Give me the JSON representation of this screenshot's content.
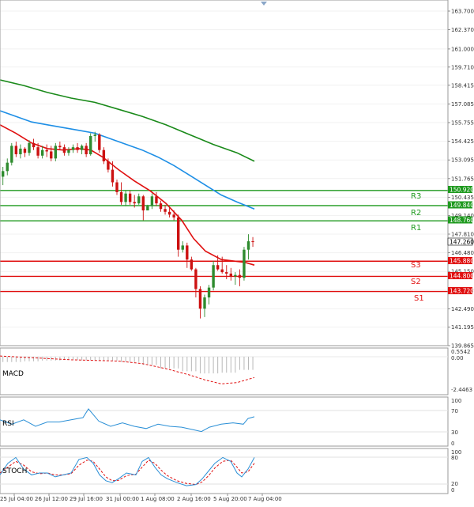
{
  "price_axis": {
    "ticks": [
      "163.700",
      "162.370",
      "161.000",
      "159.710",
      "158.415",
      "157.085",
      "155.755",
      "154.425",
      "153.095",
      "151.765",
      "150.435",
      "149.140",
      "147.810",
      "146.480",
      "145.150",
      "143.820",
      "142.490",
      "141.195",
      "139.865"
    ]
  },
  "price_tags": {
    "r3": "150.920",
    "r2": "149.840",
    "r1": "148.760",
    "current": "147.260",
    "s1": "145.880",
    "s2": "144.800",
    "s3": "143.720"
  },
  "level_labels": {
    "r3": "R3",
    "r2": "R2",
    "r1": "R1",
    "s3": "S3",
    "s2": "S2",
    "s1": "S1"
  },
  "macd": {
    "label": "MACD",
    "ticks": [
      "0.5542",
      "0.00",
      "-2.4463"
    ]
  },
  "rsi": {
    "label": "RSI",
    "ticks": [
      "100",
      "70",
      "30",
      "0"
    ]
  },
  "stoch": {
    "label": "STOCH",
    "ticks": [
      "100",
      "80",
      "20",
      "0"
    ]
  },
  "time_axis": [
    "25 Jul 04:00",
    "26 Jul 12:00",
    "29 Jul 16:00",
    "31 Jul 00:00",
    "1 Aug 08:00",
    "2 Aug 16:00",
    "5 Aug 20:00",
    "7 Aug 04:00"
  ],
  "colors": {
    "up": "#2e8b2e",
    "down": "#cc1111",
    "ma_fast": "#e01010",
    "ma_mid": "#1e8fe6",
    "ma_slow": "#1a8a1a",
    "resistance": "#1f9a1f",
    "support": "#e01010",
    "rsi_line": "#2a8fd6",
    "stoch_main": "#2a8fd6",
    "stoch_signal": "#e01010",
    "macd_hist": "#b8b8b8"
  },
  "chart_data": {
    "type": "candlestick",
    "ylim": [
      139.865,
      163.7
    ],
    "candles": [
      [
        151.9,
        152.6,
        151.3,
        152.3
      ],
      [
        152.3,
        153.2,
        152.0,
        152.9
      ],
      [
        152.9,
        154.3,
        152.7,
        154.1
      ],
      [
        154.1,
        154.4,
        153.3,
        153.5
      ],
      [
        153.5,
        154.2,
        153.2,
        153.9
      ],
      [
        153.9,
        154.0,
        153.3,
        153.6
      ],
      [
        153.6,
        154.5,
        153.4,
        154.3
      ],
      [
        154.3,
        154.6,
        153.8,
        154.0
      ],
      [
        154.0,
        154.3,
        153.2,
        153.4
      ],
      [
        153.4,
        154.1,
        153.2,
        153.8
      ],
      [
        153.8,
        154.2,
        153.3,
        153.7
      ],
      [
        153.7,
        154.1,
        153.0,
        153.2
      ],
      [
        153.2,
        154.3,
        153.0,
        154.1
      ],
      [
        154.1,
        154.4,
        153.8,
        154.0
      ],
      [
        154.0,
        154.2,
        153.4,
        153.6
      ],
      [
        153.6,
        154.0,
        153.4,
        153.8
      ],
      [
        153.8,
        154.2,
        153.6,
        154.0
      ],
      [
        154.0,
        154.3,
        153.6,
        153.8
      ],
      [
        153.8,
        154.2,
        153.5,
        154.1
      ],
      [
        154.1,
        154.3,
        153.3,
        153.5
      ],
      [
        153.5,
        155.0,
        153.4,
        154.8
      ],
      [
        154.8,
        155.1,
        154.4,
        154.9
      ],
      [
        154.9,
        155.0,
        153.6,
        153.8
      ],
      [
        153.8,
        154.0,
        152.8,
        153.0
      ],
      [
        153.0,
        153.2,
        152.2,
        152.4
      ],
      [
        152.4,
        153.0,
        151.2,
        151.5
      ],
      [
        151.5,
        151.7,
        150.6,
        150.8
      ],
      [
        150.8,
        151.5,
        149.9,
        150.1
      ],
      [
        150.1,
        150.9,
        149.8,
        150.7
      ],
      [
        150.7,
        150.9,
        149.9,
        150.1
      ],
      [
        150.1,
        150.6,
        149.7,
        150.0
      ],
      [
        150.0,
        150.7,
        149.9,
        150.5
      ],
      [
        150.5,
        150.6,
        148.8,
        149.5
      ],
      [
        149.5,
        149.9,
        149.5,
        149.8
      ],
      [
        149.8,
        150.7,
        149.6,
        150.5
      ],
      [
        150.5,
        150.8,
        149.8,
        150.0
      ],
      [
        150.0,
        150.2,
        149.4,
        149.6
      ],
      [
        149.6,
        149.9,
        149.2,
        149.4
      ],
      [
        149.4,
        149.7,
        149.0,
        149.2
      ],
      [
        149.2,
        149.5,
        148.8,
        149.0
      ],
      [
        149.0,
        149.2,
        146.2,
        146.7
      ],
      [
        146.7,
        147.3,
        146.5,
        147.0
      ],
      [
        147.0,
        147.2,
        145.4,
        146.0
      ],
      [
        146.0,
        146.2,
        145.2,
        145.3
      ],
      [
        145.3,
        145.4,
        143.3,
        143.9
      ],
      [
        143.9,
        144.1,
        141.8,
        142.5
      ],
      [
        142.5,
        143.5,
        141.9,
        143.3
      ],
      [
        143.3,
        144.2,
        142.8,
        144.0
      ],
      [
        144.0,
        145.9,
        143.8,
        145.6
      ],
      [
        145.6,
        146.3,
        145.2,
        145.3
      ],
      [
        145.3,
        146.2,
        145.0,
        145.1
      ],
      [
        145.1,
        145.6,
        144.6,
        145.0
      ],
      [
        145.0,
        145.4,
        144.5,
        144.8
      ],
      [
        144.8,
        145.1,
        144.2,
        144.9
      ],
      [
        144.9,
        145.3,
        144.1,
        144.7
      ],
      [
        144.7,
        146.9,
        144.5,
        146.7
      ],
      [
        146.7,
        147.8,
        146.0,
        147.3
      ],
      [
        147.3,
        147.6,
        146.9,
        147.26
      ]
    ],
    "ma_fast": [
      [
        0,
        155.6
      ],
      [
        20,
        155.0
      ],
      [
        40,
        154.3
      ],
      [
        60,
        153.9
      ],
      [
        80,
        153.8
      ],
      [
        100,
        153.9
      ],
      [
        115,
        153.8
      ],
      [
        130,
        153.3
      ],
      [
        150,
        152.4
      ],
      [
        170,
        151.6
      ],
      [
        190,
        150.9
      ],
      [
        210,
        150.0
      ],
      [
        230,
        148.8
      ],
      [
        245,
        147.5
      ],
      [
        260,
        146.6
      ],
      [
        280,
        146.0
      ],
      [
        295,
        145.9
      ],
      [
        310,
        145.8
      ],
      [
        322,
        145.6
      ]
    ],
    "ma_mid": [
      [
        0,
        156.6
      ],
      [
        20,
        156.2
      ],
      [
        40,
        155.8
      ],
      [
        60,
        155.6
      ],
      [
        80,
        155.4
      ],
      [
        100,
        155.2
      ],
      [
        120,
        155.0
      ],
      [
        140,
        154.6
      ],
      [
        160,
        154.2
      ],
      [
        180,
        153.8
      ],
      [
        200,
        153.3
      ],
      [
        220,
        152.7
      ],
      [
        240,
        152.0
      ],
      [
        260,
        151.3
      ],
      [
        280,
        150.6
      ],
      [
        300,
        150.1
      ],
      [
        322,
        149.6
      ]
    ],
    "ma_slow": [
      [
        0,
        158.8
      ],
      [
        30,
        158.4
      ],
      [
        60,
        157.9
      ],
      [
        90,
        157.5
      ],
      [
        120,
        157.2
      ],
      [
        150,
        156.7
      ],
      [
        180,
        156.2
      ],
      [
        210,
        155.6
      ],
      [
        240,
        154.9
      ],
      [
        270,
        154.2
      ],
      [
        300,
        153.6
      ],
      [
        322,
        153.0
      ]
    ],
    "levels": {
      "r3": 150.92,
      "r2": 149.84,
      "r1": 148.76,
      "s1": 145.88,
      "s2": 144.8,
      "s3": 143.72
    },
    "macd_signal": [
      [
        0,
        0.3
      ],
      [
        30,
        0.2
      ],
      [
        60,
        0.1
      ],
      [
        90,
        0.0
      ],
      [
        120,
        -0.05
      ],
      [
        150,
        -0.1
      ],
      [
        180,
        -0.3
      ],
      [
        210,
        -0.7
      ],
      [
        240,
        -1.2
      ],
      [
        260,
        -1.6
      ],
      [
        280,
        -1.9
      ],
      [
        300,
        -1.8
      ],
      [
        322,
        -1.4
      ]
    ],
    "rsi": [
      [
        0,
        55
      ],
      [
        15,
        45
      ],
      [
        30,
        55
      ],
      [
        45,
        40
      ],
      [
        60,
        50
      ],
      [
        75,
        50
      ],
      [
        90,
        55
      ],
      [
        105,
        60
      ],
      [
        112,
        80
      ],
      [
        125,
        52
      ],
      [
        140,
        40
      ],
      [
        155,
        48
      ],
      [
        170,
        40
      ],
      [
        185,
        35
      ],
      [
        200,
        45
      ],
      [
        215,
        40
      ],
      [
        230,
        38
      ],
      [
        245,
        32
      ],
      [
        255,
        28
      ],
      [
        265,
        38
      ],
      [
        280,
        45
      ],
      [
        295,
        48
      ],
      [
        308,
        45
      ],
      [
        314,
        58
      ],
      [
        322,
        62
      ]
    ],
    "stoch_main": [
      [
        0,
        40
      ],
      [
        10,
        70
      ],
      [
        20,
        85
      ],
      [
        30,
        55
      ],
      [
        40,
        40
      ],
      [
        50,
        45
      ],
      [
        60,
        45
      ],
      [
        70,
        35
      ],
      [
        80,
        40
      ],
      [
        90,
        45
      ],
      [
        100,
        80
      ],
      [
        110,
        85
      ],
      [
        118,
        70
      ],
      [
        126,
        40
      ],
      [
        134,
        25
      ],
      [
        142,
        20
      ],
      [
        150,
        30
      ],
      [
        160,
        45
      ],
      [
        172,
        40
      ],
      [
        180,
        75
      ],
      [
        188,
        85
      ],
      [
        196,
        60
      ],
      [
        204,
        40
      ],
      [
        212,
        30
      ],
      [
        224,
        20
      ],
      [
        236,
        12
      ],
      [
        248,
        15
      ],
      [
        256,
        30
      ],
      [
        264,
        50
      ],
      [
        272,
        70
      ],
      [
        282,
        85
      ],
      [
        292,
        75
      ],
      [
        300,
        45
      ],
      [
        306,
        35
      ],
      [
        314,
        55
      ],
      [
        322,
        85
      ]
    ],
    "stoch_signal": [
      [
        0,
        45
      ],
      [
        10,
        60
      ],
      [
        20,
        75
      ],
      [
        30,
        65
      ],
      [
        40,
        48
      ],
      [
        50,
        43
      ],
      [
        60,
        45
      ],
      [
        70,
        40
      ],
      [
        80,
        40
      ],
      [
        90,
        43
      ],
      [
        100,
        65
      ],
      [
        110,
        78
      ],
      [
        118,
        75
      ],
      [
        126,
        55
      ],
      [
        134,
        35
      ],
      [
        142,
        25
      ],
      [
        150,
        26
      ],
      [
        160,
        38
      ],
      [
        172,
        42
      ],
      [
        180,
        60
      ],
      [
        188,
        78
      ],
      [
        196,
        70
      ],
      [
        204,
        52
      ],
      [
        212,
        38
      ],
      [
        224,
        25
      ],
      [
        236,
        18
      ],
      [
        248,
        15
      ],
      [
        256,
        22
      ],
      [
        264,
        38
      ],
      [
        272,
        58
      ],
      [
        282,
        75
      ],
      [
        292,
        78
      ],
      [
        300,
        60
      ],
      [
        306,
        45
      ],
      [
        314,
        48
      ],
      [
        322,
        70
      ]
    ]
  }
}
